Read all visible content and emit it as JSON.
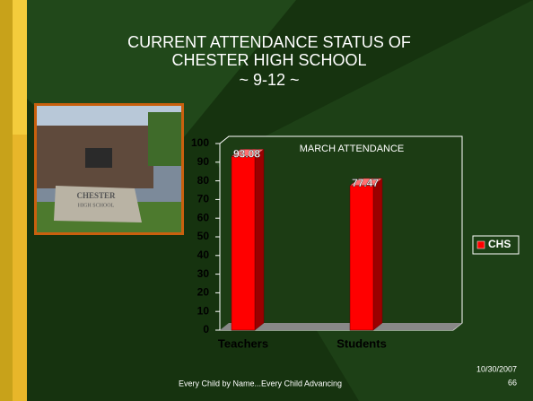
{
  "slide": {
    "title": [
      "CURRENT ATTENDANCE STATUS OF",
      "CHESTER HIGH SCHOOL",
      "~ 9-12 ~"
    ],
    "photo_sign": [
      "CHESTER",
      "HIGH SCHOOL"
    ],
    "footer": "Every Child by Name...Every Child Advancing",
    "date": "10/30/2007",
    "page": "66"
  },
  "chart_data": {
    "type": "bar",
    "title": "MARCH ATTENDANCE",
    "categories": [
      "Teachers",
      "Students"
    ],
    "series": [
      {
        "name": "CHS",
        "color": "#ff0000",
        "values": [
          93.08,
          77.47
        ]
      }
    ],
    "ylim": [
      0,
      100
    ],
    "yticks": [
      0,
      10,
      20,
      30,
      40,
      50,
      60,
      70,
      80,
      90,
      100
    ],
    "grid": false,
    "legend": "right"
  }
}
